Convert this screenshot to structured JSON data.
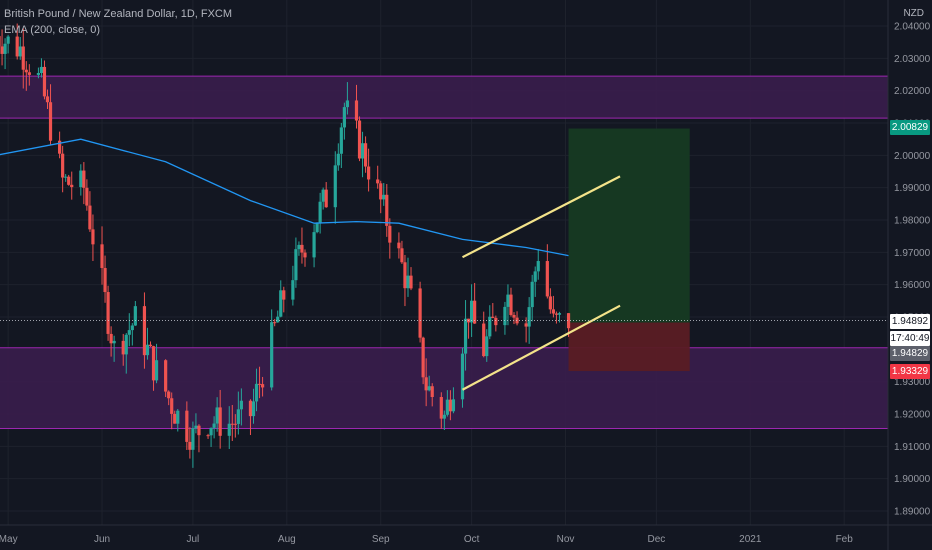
{
  "legend": {
    "symbol": "British Pound / New Zealand Dollar, 1D, FXCM",
    "indicator": "EMA (200, close, 0)"
  },
  "currency": "NZD",
  "colors": {
    "background": "#131722",
    "up": "#26a69a",
    "down": "#ef5350",
    "ema": "#2196f3",
    "zone_fill": "#3a1d4d",
    "zone_border": "#9c27b0",
    "trendline": "#f3e38a",
    "target_fill": "#163a23",
    "stop_fill": "#5a1c24"
  },
  "price_tags": {
    "target": "2.00829",
    "current": "1.94892",
    "countdown": "17:40:49",
    "entry": "1.94829",
    "stop": "1.93329"
  },
  "chart_data": {
    "type": "candlestick",
    "ylim": [
      1.885,
      2.047
    ],
    "yticks": [
      "2.04000",
      "2.03000",
      "2.02000",
      "2.01000",
      "2.00000",
      "1.99000",
      "1.98000",
      "1.97000",
      "1.96000",
      "1.95000",
      "1.94000",
      "1.93000",
      "1.92000",
      "1.91000",
      "1.90000",
      "1.89000"
    ],
    "xticks": [
      "May",
      "Jun",
      "Jul",
      "Aug",
      "Sep",
      "Oct",
      "Nov",
      "Dec",
      "2021",
      "Feb"
    ],
    "zones": [
      {
        "from": 2.0115,
        "to": 2.0245
      },
      {
        "from": 1.9155,
        "to": 1.9405
      }
    ],
    "trendlines": [
      {
        "from": [
          "2020-09-28",
          1.9685
        ],
        "to": [
          "2020-11-19",
          1.9935
        ]
      },
      {
        "from": [
          "2020-09-28",
          1.9275
        ],
        "to": [
          "2020-11-19",
          1.9535
        ]
      }
    ],
    "position": {
      "entry": 1.94829,
      "target": 2.00829,
      "stop": 1.93329,
      "start": "2020-11-02",
      "end": "2020-12-12"
    },
    "last_price": 1.94892,
    "ema": [
      [
        "2020-04-27",
        2.0
      ],
      [
        "2020-05-25",
        2.005
      ],
      [
        "2020-06-22",
        1.998
      ],
      [
        "2020-07-20",
        1.986
      ],
      [
        "2020-08-10",
        1.979
      ],
      [
        "2020-08-24",
        1.9795
      ],
      [
        "2020-09-07",
        1.979
      ],
      [
        "2020-09-28",
        1.974
      ],
      [
        "2020-10-19",
        1.9715
      ],
      [
        "2020-11-02",
        1.969
      ]
    ],
    "close_path": [
      [
        "2020-04-27",
        2.037
      ],
      [
        "2020-05-05",
        2.033
      ],
      [
        "2020-05-12",
        2.022
      ],
      [
        "2020-05-19",
        1.992
      ],
      [
        "2020-05-26",
        1.99
      ],
      [
        "2020-06-01",
        1.96
      ],
      [
        "2020-06-05",
        1.94
      ],
      [
        "2020-06-12",
        1.949
      ],
      [
        "2020-06-18",
        1.935
      ],
      [
        "2020-06-25",
        1.921
      ],
      [
        "2020-07-01",
        1.913
      ],
      [
        "2020-07-06",
        1.918
      ],
      [
        "2020-07-13",
        1.917
      ],
      [
        "2020-07-20",
        1.92
      ],
      [
        "2020-07-27",
        1.943
      ],
      [
        "2020-08-01",
        1.96
      ],
      [
        "2020-08-07",
        1.973
      ],
      [
        "2020-08-14",
        1.987
      ],
      [
        "2020-08-20",
        2.015
      ],
      [
        "2020-08-27",
        1.999
      ],
      [
        "2020-09-03",
        1.98
      ],
      [
        "2020-09-10",
        1.96
      ],
      [
        "2020-09-16",
        1.929
      ],
      [
        "2020-09-22",
        1.919
      ],
      [
        "2020-09-25",
        1.93
      ],
      [
        "2020-09-30",
        1.952
      ],
      [
        "2020-10-05",
        1.94
      ],
      [
        "2020-10-12",
        1.958
      ],
      [
        "2020-10-19",
        1.948
      ],
      [
        "2020-10-23",
        1.97
      ],
      [
        "2020-10-28",
        1.948
      ],
      [
        "2020-11-02",
        1.94892
      ]
    ]
  }
}
